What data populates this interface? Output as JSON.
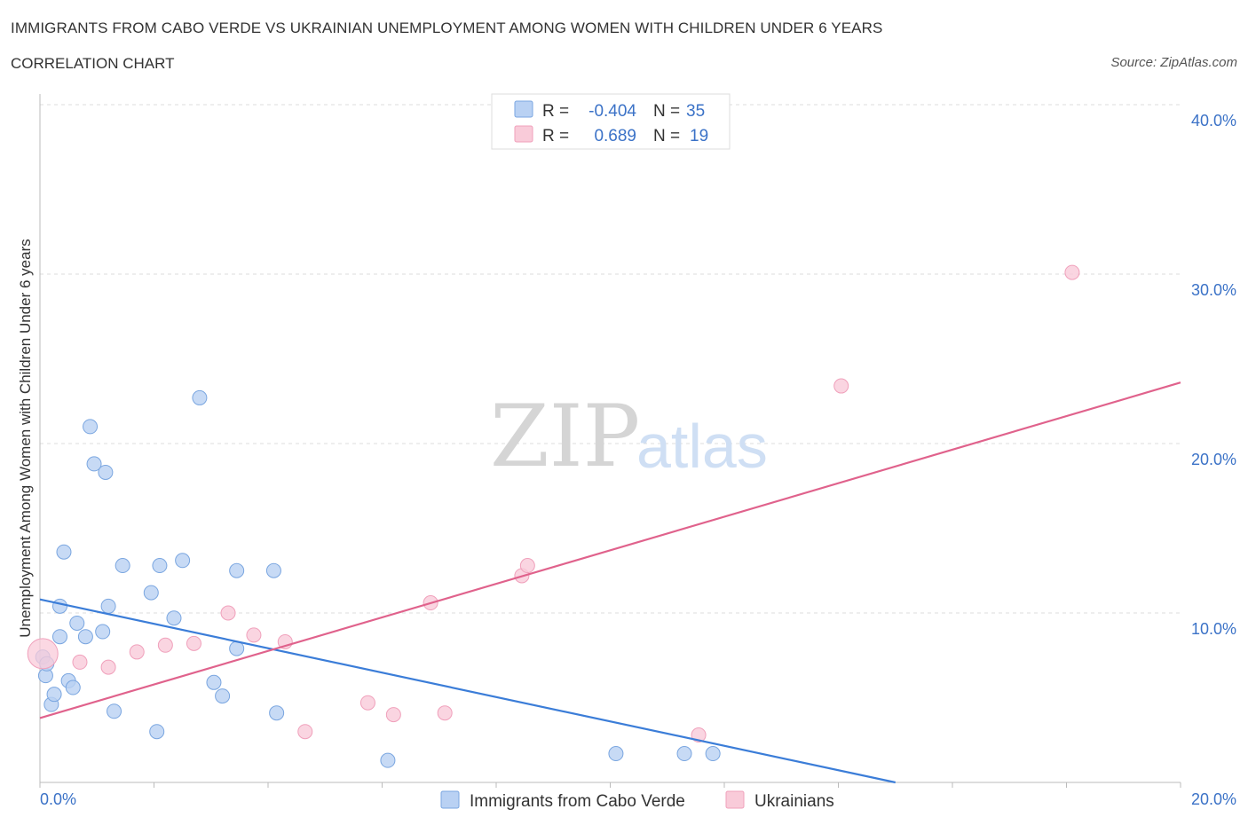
{
  "header": {
    "title": "IMMIGRANTS FROM CABO VERDE VS UKRAINIAN UNEMPLOYMENT AMONG WOMEN WITH CHILDREN UNDER 6 YEARS",
    "subtitle": "CORRELATION CHART",
    "source": "Source: ZipAtlas.com"
  },
  "watermark": {
    "zip": "ZIP",
    "atlas": "atlas"
  },
  "legend": {
    "rows": [
      {
        "r_label": "R =",
        "r_value": "-0.404",
        "n_label": "N =",
        "n_value": "35",
        "color": "#7aa6e0",
        "fill": "#b9d1f3"
      },
      {
        "r_label": "R =",
        "r_value": "0.689",
        "n_label": "N =",
        "n_value": "19",
        "color": "#f0a0bb",
        "fill": "#f9cbd9"
      }
    ]
  },
  "bottom_legend": [
    {
      "label": "Immigrants from Cabo Verde",
      "color": "#7aa6e0",
      "fill": "#b9d1f3"
    },
    {
      "label": "Ukrainians",
      "color": "#f0a0bb",
      "fill": "#f9cbd9"
    }
  ],
  "chart_data": {
    "type": "scatter",
    "title": "IMMIGRANTS FROM CABO VERDE VS UKRAINIAN UNEMPLOYMENT AMONG WOMEN WITH CHILDREN UNDER 6 YEARS",
    "subtitle": "CORRELATION CHART",
    "xlabel": "",
    "ylabel": "Unemployment Among Women with Children Under 6 years",
    "xlim": [
      0,
      20
    ],
    "ylim": [
      0,
      40
    ],
    "x_tick_labels": [
      "0.0%",
      "20.0%"
    ],
    "y_ticks": [
      10,
      20,
      30,
      40
    ],
    "y_tick_labels": [
      "10.0%",
      "20.0%",
      "30.0%",
      "40.0%"
    ],
    "grid": true,
    "legend_position": "top-center",
    "series": [
      {
        "name": "Immigrants from Cabo Verde",
        "color": "#3b7dd8",
        "marker_fill": "#b9d1f3",
        "points": [
          [
            0.05,
            7.4
          ],
          [
            0.1,
            6.3
          ],
          [
            0.12,
            7.0
          ],
          [
            0.2,
            4.6
          ],
          [
            0.25,
            5.2
          ],
          [
            0.35,
            8.6
          ],
          [
            0.35,
            10.4
          ],
          [
            0.42,
            13.6
          ],
          [
            0.5,
            6.0
          ],
          [
            0.58,
            5.6
          ],
          [
            0.65,
            9.4
          ],
          [
            0.8,
            8.6
          ],
          [
            0.88,
            21.0
          ],
          [
            0.95,
            18.8
          ],
          [
            1.1,
            8.9
          ],
          [
            1.15,
            18.3
          ],
          [
            1.2,
            10.4
          ],
          [
            1.3,
            4.2
          ],
          [
            1.45,
            12.8
          ],
          [
            1.95,
            11.2
          ],
          [
            2.05,
            3.0
          ],
          [
            2.1,
            12.8
          ],
          [
            2.35,
            9.7
          ],
          [
            2.5,
            13.1
          ],
          [
            2.8,
            22.7
          ],
          [
            3.05,
            5.9
          ],
          [
            3.2,
            5.1
          ],
          [
            3.45,
            12.5
          ],
          [
            3.45,
            7.9
          ],
          [
            4.15,
            4.1
          ],
          [
            4.1,
            12.5
          ],
          [
            6.1,
            1.3
          ],
          [
            10.1,
            1.7
          ],
          [
            11.3,
            1.7
          ],
          [
            11.8,
            1.7
          ]
        ],
        "trend": {
          "x": [
            0,
            15.0
          ],
          "y": [
            10.8,
            0.0
          ]
        }
      },
      {
        "name": "Ukrainians",
        "color": "#e0628c",
        "marker_fill": "#f9cbd9",
        "points": [
          [
            0.05,
            7.6
          ],
          [
            0.7,
            7.1
          ],
          [
            1.2,
            6.8
          ],
          [
            1.7,
            7.7
          ],
          [
            2.2,
            8.1
          ],
          [
            2.7,
            8.2
          ],
          [
            3.3,
            10.0
          ],
          [
            3.75,
            8.7
          ],
          [
            4.3,
            8.3
          ],
          [
            4.65,
            3.0
          ],
          [
            5.75,
            4.7
          ],
          [
            6.2,
            4.0
          ],
          [
            6.85,
            10.6
          ],
          [
            7.1,
            4.1
          ],
          [
            8.45,
            12.2
          ],
          [
            8.55,
            12.8
          ],
          [
            11.55,
            2.8
          ],
          [
            14.05,
            23.4
          ],
          [
            18.1,
            30.1
          ]
        ],
        "trend": {
          "x": [
            0,
            20.0
          ],
          "y": [
            3.8,
            23.6
          ]
        }
      }
    ]
  }
}
